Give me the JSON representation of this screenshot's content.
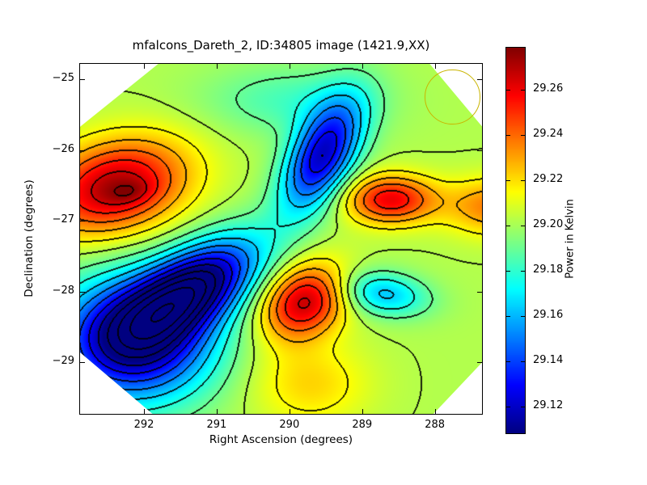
{
  "title": "mfalcons_Dareth_2, ID:34805 image (1421.9,XX)",
  "axes": {
    "xlabel": "Right Ascension (degrees)",
    "ylabel": "Declination (degrees)",
    "x_tick_labels": [
      "292",
      "291",
      "290",
      "289",
      "288"
    ],
    "x_tick_values": [
      292,
      291,
      290,
      289,
      288
    ],
    "y_tick_labels": [
      "−25",
      "−26",
      "−27",
      "−28",
      "−29"
    ],
    "y_tick_values": [
      -25,
      -26,
      -27,
      -28,
      -29
    ]
  },
  "colorbar": {
    "label": "Power in Kelvin",
    "tick_labels": [
      "29.26",
      "29.24",
      "29.22",
      "29.20",
      "29.18",
      "29.16",
      "29.14",
      "29.12"
    ],
    "tick_values": [
      29.26,
      29.24,
      29.22,
      29.2,
      29.18,
      29.16,
      29.14,
      29.12
    ],
    "vmin": 29.108,
    "vmax": 29.279,
    "colormap": "jet"
  },
  "chart_data": {
    "type": "heatmap",
    "subtype": "filled-contour-with-lines",
    "title": "mfalcons_Dareth_2, ID:34805 image (1421.9,XX)",
    "xlabel": "Right Ascension (degrees)",
    "ylabel": "Declination (degrees)",
    "x_range": [
      292.89,
      287.34
    ],
    "y_range": [
      -24.77,
      -29.74
    ],
    "value_label": "Power in Kelvin",
    "vmin": 29.108,
    "vmax": 29.279,
    "base_level": 29.202,
    "contour_levels": {
      "start": 29.115,
      "step": 0.0125,
      "count": 13
    },
    "contour_line_color": "#000000",
    "features": [
      {
        "name": "upper-left-maximum",
        "ra": 292.4,
        "dec": -26.52,
        "amp": 0.07,
        "sra": 1.0,
        "sdec": 0.63,
        "rot": 15
      },
      {
        "name": "upper-left-core",
        "ra": 292.18,
        "dec": -26.6,
        "amp": 0.012,
        "sra": 0.31,
        "sdec": 0.16,
        "rot": 10
      },
      {
        "name": "top-center-minimum",
        "ra": 289.55,
        "dec": -26.08,
        "amp": -0.082,
        "sra": 0.42,
        "sdec": 0.86,
        "rot": -28
      },
      {
        "name": "mid-right-maximum",
        "ra": 288.61,
        "dec": -26.7,
        "amp": 0.058,
        "sra": 0.61,
        "sdec": 0.34,
        "rot": 0
      },
      {
        "name": "right-edge-ridge",
        "ra": 287.19,
        "dec": -26.8,
        "amp": 0.035,
        "sra": 0.67,
        "sdec": 0.4,
        "rot": 0
      },
      {
        "name": "lower-left-valley",
        "ra": 291.31,
        "dec": -27.94,
        "amp": -0.098,
        "sra": 1.0,
        "sdec": 0.51,
        "rot": 32
      },
      {
        "name": "lower-left-broad-min",
        "ra": 292.14,
        "dec": -28.68,
        "amp": -0.095,
        "sra": 1.06,
        "sdec": 0.86,
        "rot": 0
      },
      {
        "name": "bottom-center-maximum",
        "ra": 289.79,
        "dec": -28.14,
        "amp": 0.066,
        "sra": 0.61,
        "sdec": 0.48,
        "rot": 30
      },
      {
        "name": "bottom-extension",
        "ra": 289.72,
        "dec": -29.3,
        "amp": 0.02,
        "sra": 0.8,
        "sdec": 0.59,
        "rot": 0
      },
      {
        "name": "right-cyan-minimum",
        "ra": 288.72,
        "dec": -28.03,
        "amp": -0.04,
        "sra": 0.63,
        "sdec": 0.31,
        "rot": -8
      },
      {
        "name": "top-shallow-band",
        "ra": 290.0,
        "dec": -25.3,
        "amp": -0.018,
        "sra": 1.2,
        "sdec": 0.5,
        "rot": 0
      }
    ],
    "data_footprint_octagon": [
      [
        291.79,
        -24.77
      ],
      [
        288.08,
        -24.77
      ],
      [
        287.34,
        -25.68
      ],
      [
        287.34,
        -28.99
      ],
      [
        288.03,
        -29.74
      ],
      [
        291.87,
        -29.74
      ],
      [
        292.89,
        -28.85
      ],
      [
        292.89,
        -25.68
      ]
    ],
    "beam_circle": {
      "ra": 287.77,
      "dec": -25.24,
      "radius_deg": 0.37,
      "color": "#c9b400"
    },
    "point_marker": {
      "ra": 289.55,
      "dec": -26.08,
      "color": "#000000"
    }
  }
}
